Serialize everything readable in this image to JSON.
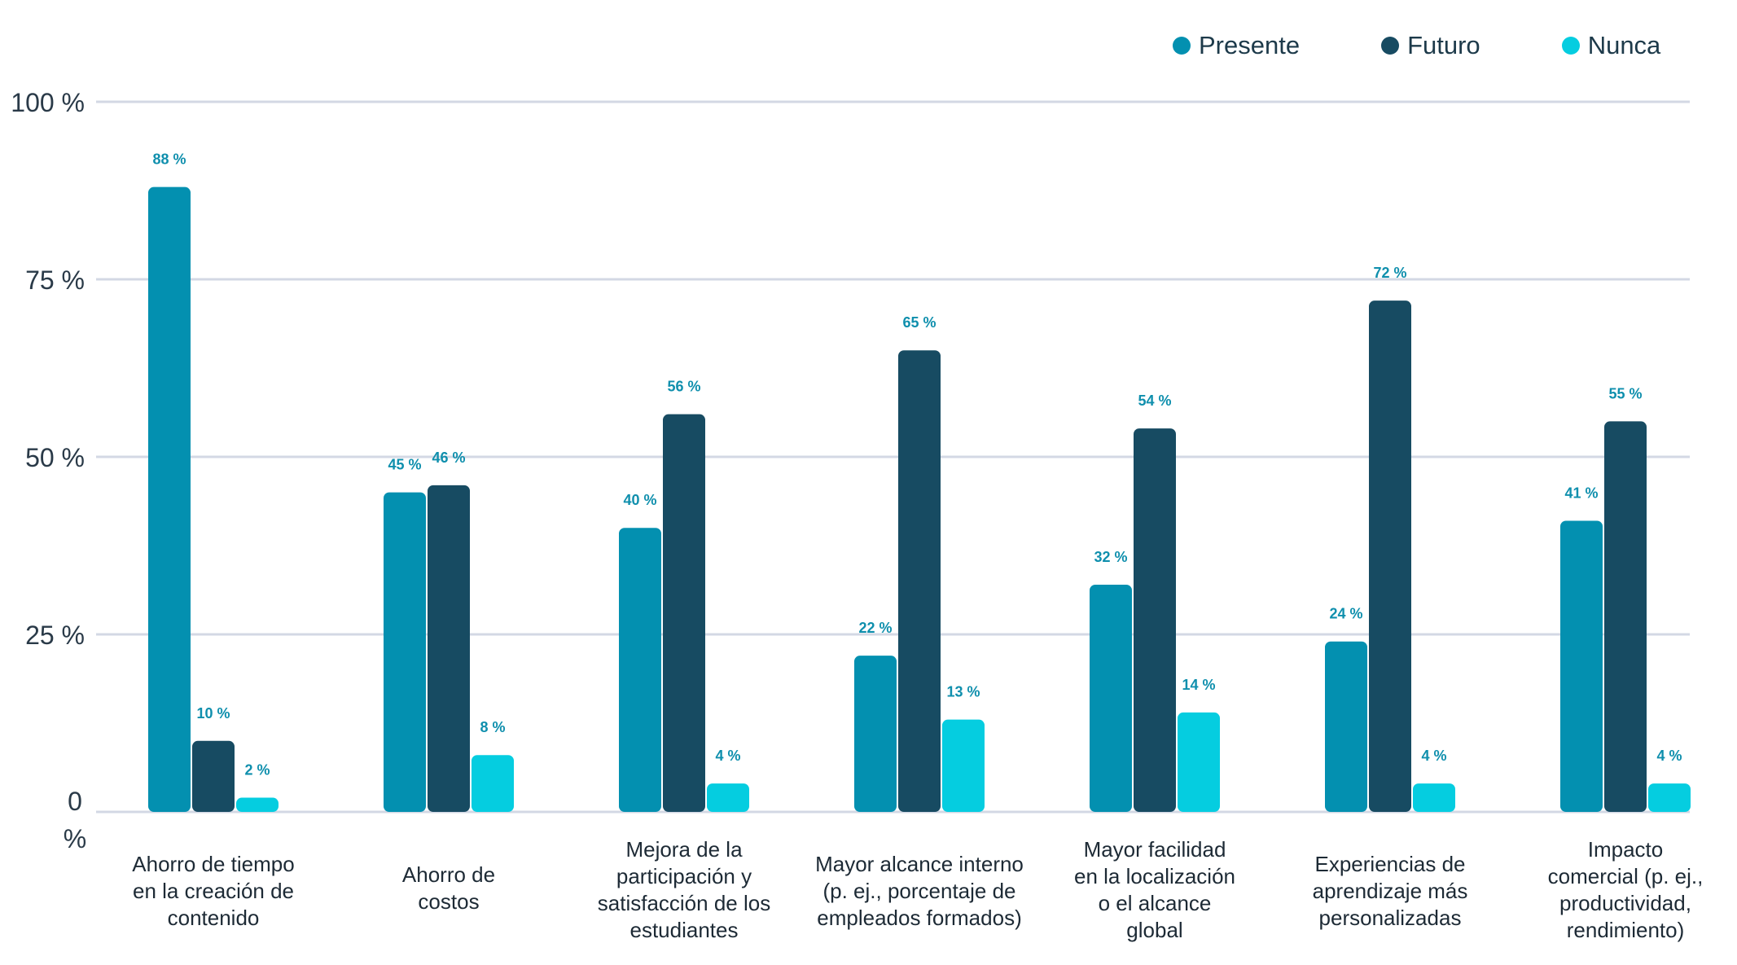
{
  "chart_data": {
    "type": "bar",
    "categories": [
      [
        "Ahorro de tiempo",
        "en la creación de",
        "contenido"
      ],
      [
        "Ahorro de",
        "costos"
      ],
      [
        "Mejora de la",
        "participación y",
        "satisfacción de los",
        "estudiantes"
      ],
      [
        "Mayor alcance interno",
        "(p. ej., porcentaje de",
        "empleados formados)"
      ],
      [
        "Mayor facilidad",
        "en la localización",
        "o el alcance",
        "global"
      ],
      [
        "Experiencias de",
        "aprendizaje más",
        "personalizadas"
      ],
      [
        "Impacto",
        "comercial (p. ej.,",
        "productividad,",
        "rendimiento)"
      ]
    ],
    "series": [
      {
        "name": "Presente",
        "color": "#0390b0",
        "values": [
          88,
          45,
          40,
          22,
          32,
          24,
          41
        ]
      },
      {
        "name": "Futuro",
        "color": "#174b62",
        "values": [
          10,
          46,
          56,
          65,
          54,
          72,
          55
        ]
      },
      {
        "name": "Nunca",
        "color": "#05cde0",
        "values": [
          2,
          8,
          4,
          13,
          14,
          4,
          4
        ]
      }
    ],
    "yticks": [
      "0 %",
      "25 %",
      "50 %",
      "75 %",
      "100 %"
    ],
    "ylim": [
      0,
      100
    ],
    "grid": true,
    "legend_position": "top-right",
    "value_suffix": " %"
  }
}
